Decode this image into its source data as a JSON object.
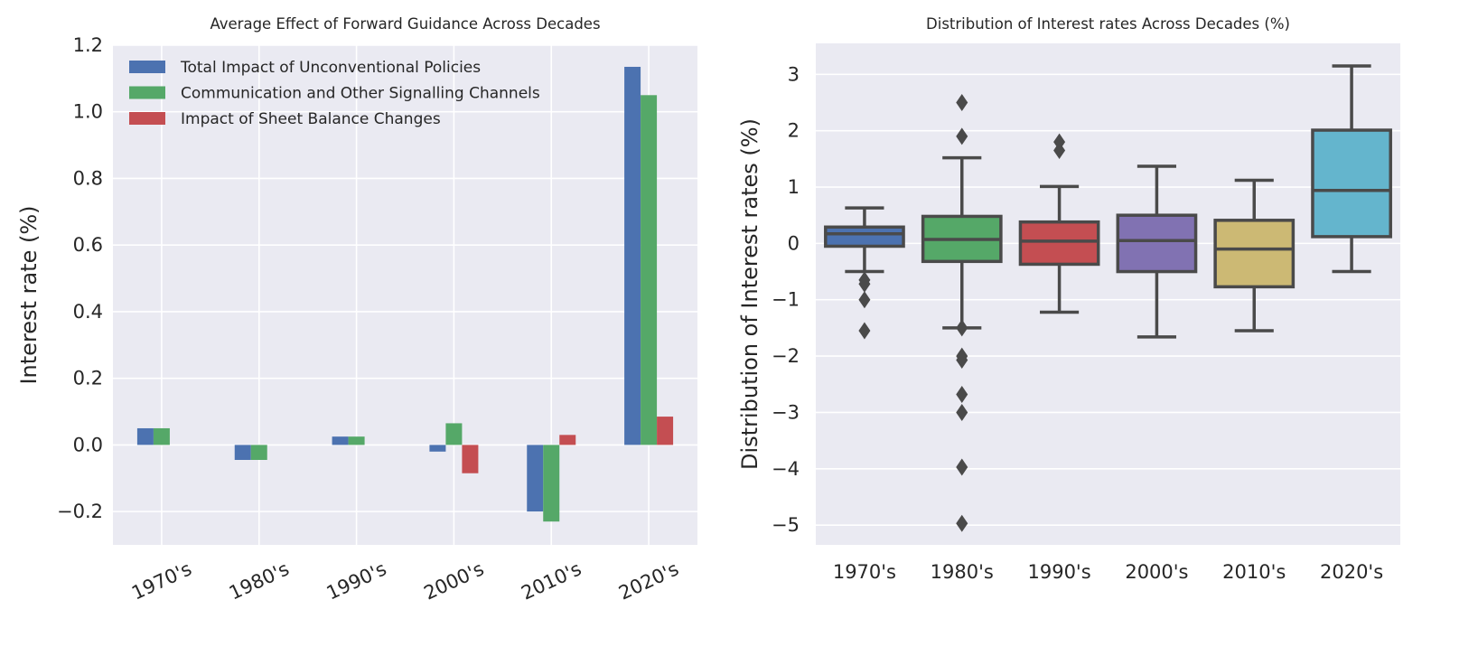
{
  "chart_data": [
    {
      "type": "bar",
      "title": "Average Effect of Forward Guidance Across Decades",
      "xlabel": "",
      "ylabel": "Interest rate (%)",
      "categories": [
        "1970's",
        "1980's",
        "1990's",
        "2000's",
        "2010's",
        "2020's"
      ],
      "ylim": [
        -0.3,
        1.2
      ],
      "yticks": [
        -0.2,
        0.0,
        0.2,
        0.4,
        0.6,
        0.8,
        1.0,
        1.2
      ],
      "ytick_labels": [
        "−0.2",
        "0.0",
        "0.2",
        "0.4",
        "0.6",
        "0.8",
        "1.0",
        "1.2"
      ],
      "grid": true,
      "legend_position": "top-left",
      "xtick_rotation_deg": -25,
      "series": [
        {
          "name": "Total Impact of Unconventional Policies",
          "color": "#4c72b0",
          "values": [
            0.05,
            -0.045,
            0.025,
            -0.02,
            -0.2,
            1.135
          ]
        },
        {
          "name": "Communication and Other Signalling Channels",
          "color": "#55a868",
          "values": [
            0.05,
            -0.045,
            0.025,
            0.065,
            -0.23,
            1.05
          ]
        },
        {
          "name": "Impact of Sheet Balance Changes",
          "color": "#c44e52",
          "values": [
            0.0,
            0.0,
            0.0,
            -0.085,
            0.03,
            0.085
          ]
        }
      ]
    },
    {
      "type": "box",
      "title": "Distribution of Interest rates Across Decades (%)",
      "xlabel": "",
      "ylabel": "Distribution of Interest rates (%)",
      "categories": [
        "1970's",
        "1980's",
        "1990's",
        "2000's",
        "2010's",
        "2020's"
      ],
      "ylim": [
        -5.35,
        3.55
      ],
      "yticks": [
        -5,
        -4,
        -3,
        -2,
        -1,
        0,
        1,
        2,
        3
      ],
      "ytick_labels": [
        "−5",
        "−4",
        "−3",
        "−2",
        "−1",
        "0",
        "1",
        "2",
        "3"
      ],
      "grid": true,
      "boxes": [
        {
          "category": "1970's",
          "color": "#4c72b0",
          "whisker_low": -0.5,
          "q1": -0.05,
          "median": 0.17,
          "q3": 0.29,
          "whisker_high": 0.63,
          "outliers": [
            -0.65,
            -0.72,
            -1.0,
            -1.55
          ]
        },
        {
          "category": "1980's",
          "color": "#55a868",
          "whisker_low": -1.5,
          "q1": -0.32,
          "median": 0.07,
          "q3": 0.48,
          "whisker_high": 1.52,
          "outliers": [
            2.5,
            1.9,
            -1.5,
            -2.0,
            -2.07,
            -2.68,
            -3.0,
            -3.97,
            -4.97
          ]
        },
        {
          "category": "1990's",
          "color": "#c44e52",
          "whisker_low": -1.22,
          "q1": -0.37,
          "median": 0.04,
          "q3": 0.38,
          "whisker_high": 1.01,
          "outliers": [
            1.8,
            1.65
          ]
        },
        {
          "category": "2000's",
          "color": "#8172b2",
          "whisker_low": -1.66,
          "q1": -0.5,
          "median": 0.05,
          "q3": 0.5,
          "whisker_high": 1.37,
          "outliers": []
        },
        {
          "category": "2010's",
          "color": "#ccb974",
          "whisker_low": -1.55,
          "q1": -0.77,
          "median": -0.1,
          "q3": 0.41,
          "whisker_high": 1.12,
          "outliers": []
        },
        {
          "category": "2020's",
          "color": "#64b5cd",
          "whisker_low": -0.5,
          "q1": 0.12,
          "median": 0.94,
          "q3": 2.01,
          "whisker_high": 3.15,
          "outliers": []
        }
      ]
    }
  ]
}
